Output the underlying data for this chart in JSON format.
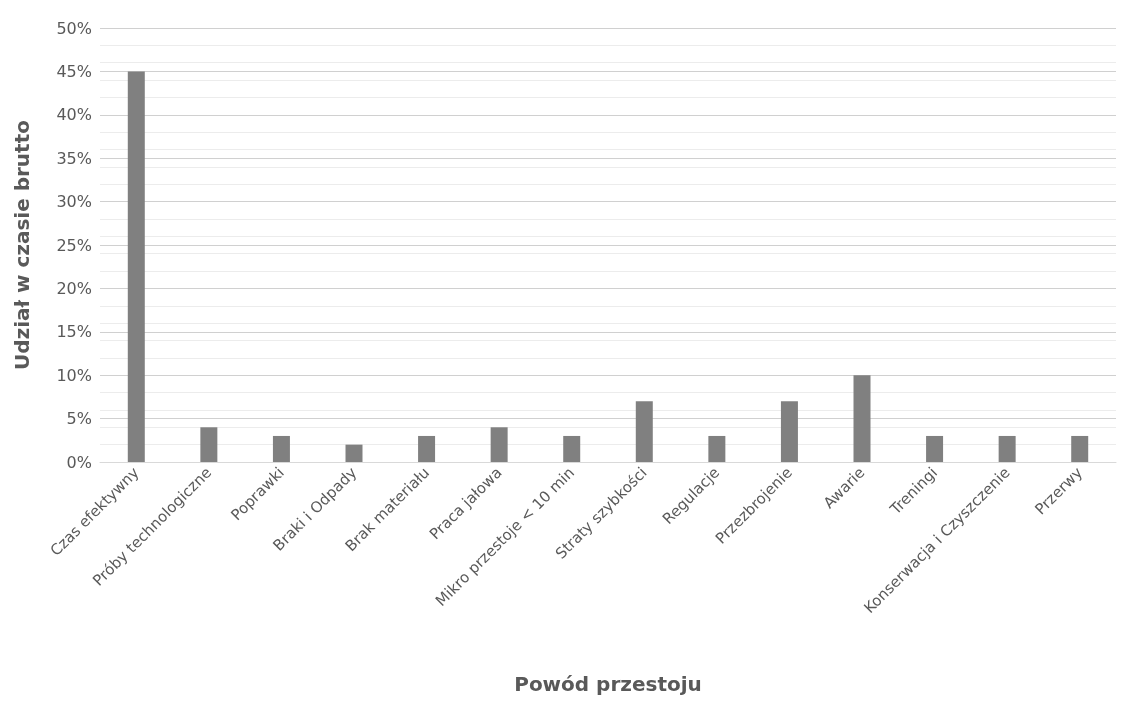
{
  "chart_data": {
    "type": "bar",
    "xlabel": "Powód przestoju",
    "ylabel": "Udział w czasie brutto",
    "categories": [
      "Czas efektywny",
      "Próby technologiczne",
      "Poprawki",
      "Braki i Odpady",
      "Brak materiału",
      "Praca jałowa",
      "Mikro przestoje < 10 min",
      "Straty szybkości",
      "Regulacje",
      "Przezbrojenie",
      "Awarie",
      "Treningi",
      "Konserwacja i Czyszczenie",
      "Przerwy"
    ],
    "values": [
      45,
      4,
      3,
      2,
      3,
      4,
      3,
      7,
      3,
      7,
      10,
      3,
      3,
      3
    ],
    "color": "#808080",
    "ylim": [
      0,
      50
    ],
    "yticks": [
      {
        "value": 0,
        "label": "0%"
      },
      {
        "value": 5,
        "label": "5%"
      },
      {
        "value": 10,
        "label": "10%"
      },
      {
        "value": 15,
        "label": "15%"
      },
      {
        "value": 20,
        "label": "20%"
      },
      {
        "value": 25,
        "label": "25%"
      },
      {
        "value": 30,
        "label": "30%"
      },
      {
        "value": 35,
        "label": "35%"
      },
      {
        "value": 40,
        "label": "40%"
      },
      {
        "value": 45,
        "label": "45%"
      },
      {
        "value": 50,
        "label": "50%"
      }
    ],
    "grid": true
  }
}
